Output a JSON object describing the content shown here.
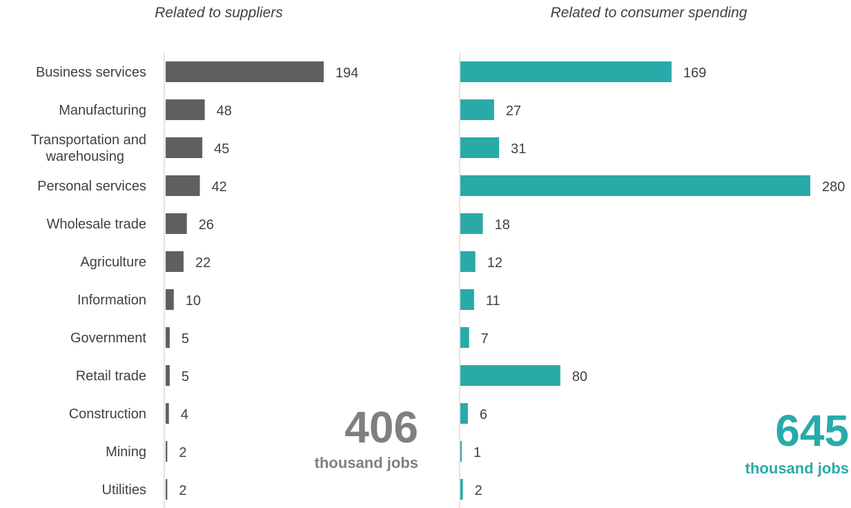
{
  "chart_data": {
    "type": "bar",
    "orientation": "horizontal",
    "categories": [
      "Business services",
      "Manufacturing",
      "Transportation and warehousing",
      "Personal services",
      "Wholesale trade",
      "Agriculture",
      "Information",
      "Government",
      "Retail trade",
      "Construction",
      "Mining",
      "Utilities"
    ],
    "series": [
      {
        "title": "Related to suppliers",
        "values": [
          194,
          48,
          45,
          42,
          26,
          22,
          10,
          5,
          5,
          4,
          2,
          2
        ],
        "color": "#5f5f5f",
        "total": "406",
        "total_unit": "thousand jobs",
        "total_color": "#7f7f7f"
      },
      {
        "title": "Related to consumer spending",
        "values": [
          169,
          27,
          31,
          280,
          18,
          12,
          11,
          7,
          80,
          6,
          1,
          2
        ],
        "color": "#29aaa8",
        "total": "645",
        "total_unit": "thousand jobs",
        "total_color": "#29aaa8"
      }
    ],
    "grid": false,
    "legend": "none"
  }
}
